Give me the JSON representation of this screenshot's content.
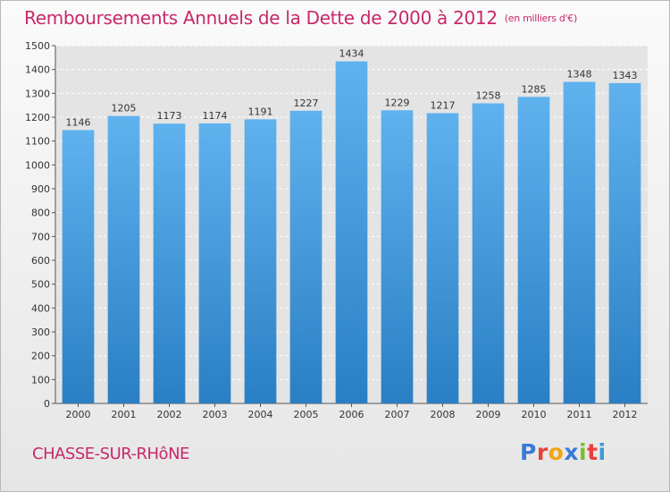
{
  "title": "Remboursements Annuels de la Dette de 2000 à 2012",
  "unit": "(en milliers d'€)",
  "commune": "CHASSE-SUR-RHôNE",
  "logo": {
    "letters": [
      "P",
      "r",
      "o",
      "x",
      "i",
      "t",
      "i"
    ]
  },
  "colors": {
    "title": "#c8286a",
    "bar_top": "#5fb2ee",
    "bar_bottom": "#2a7fc4"
  },
  "chart_data": {
    "type": "bar",
    "title": "Remboursements Annuels de la Dette de 2000 à 2012",
    "categories": [
      "2000",
      "2001",
      "2002",
      "2003",
      "2004",
      "2005",
      "2006",
      "2007",
      "2008",
      "2009",
      "2010",
      "2011",
      "2012"
    ],
    "values": [
      1146,
      1205,
      1173,
      1174,
      1191,
      1227,
      1434,
      1229,
      1217,
      1258,
      1285,
      1348,
      1343
    ],
    "ylim": [
      0,
      1500
    ],
    "yticks": [
      0,
      100,
      200,
      300,
      400,
      500,
      600,
      700,
      800,
      900,
      1000,
      1100,
      1200,
      1300,
      1400,
      1500
    ],
    "grid": true,
    "legend": "none"
  }
}
